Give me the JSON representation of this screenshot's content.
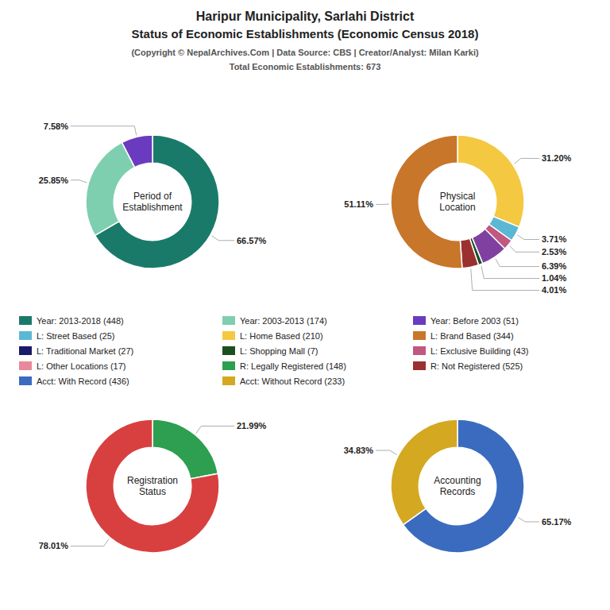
{
  "title": [
    "Haripur Municipality, Sarlahi District",
    "Status of Economic Establishments (Economic Census 2018)"
  ],
  "subtitle": [
    "(Copyright © NepalArchives.Com | Data Source: CBS | Creator/Analyst: Milan Karki)",
    "Total Economic Establishments: 673"
  ],
  "series": [
    {
      "name": "Year: 2013-2018 (448)",
      "color": "#1a7a6a"
    },
    {
      "name": "Year: 2003-2013 (174)",
      "color": "#7ecfb0"
    },
    {
      "name": "Year: Before 2003 (51)",
      "color": "#6b3bbf"
    },
    {
      "name": "L: Street Based (25)",
      "color": "#5bb8d4"
    },
    {
      "name": "L: Home Based (210)",
      "color": "#f5c842"
    },
    {
      "name": "L: Brand Based (344)",
      "color": "#c8762a"
    },
    {
      "name": "L: Traditional Market (27)",
      "color": "#1a1a6a"
    },
    {
      "name": "L: Shopping Mall (7)",
      "color": "#1a5020"
    },
    {
      "name": "L: Exclusive Building (43)",
      "color": "#c05880"
    },
    {
      "name": "L: Other Locations (17)",
      "color": "#e88898"
    },
    {
      "name": "R: Legally Registered (148)",
      "color": "#2e9e50"
    },
    {
      "name": "R: Not Registered (525)",
      "color": "#9b3030"
    },
    {
      "name": "Acct: With Record (436)",
      "color": "#3a6bbf"
    },
    {
      "name": "Acct: Without Record (233)",
      "color": "#d4a820"
    }
  ],
  "chart_data": [
    {
      "type": "pie",
      "title": "Period of\nEstablishment",
      "values": [
        66.57,
        25.85,
        7.58
      ],
      "value_labels": [
        "66.57%",
        "25.85%",
        "7.58%"
      ],
      "colors": [
        "#1a7a6a",
        "#7ecfb0",
        "#6b3bbf"
      ],
      "data_labels": true
    },
    {
      "type": "pie",
      "title": "Physical\nLocation",
      "values": [
        31.2,
        3.71,
        2.53,
        6.39,
        1.04,
        4.01,
        51.11
      ],
      "value_labels": [
        "31.20%",
        "3.71%",
        "2.53%",
        "6.39%",
        "1.04%",
        "4.01%",
        "51.11%"
      ],
      "colors": [
        "#f5c842",
        "#5bb8d4",
        "#c05880",
        "#8040a0",
        "#1a5020",
        "#9b3030",
        "#c8762a"
      ],
      "data_labels": true
    },
    {
      "type": "pie",
      "title": "Registration\nStatus",
      "values": [
        21.99,
        78.01
      ],
      "value_labels": [
        "21.99%",
        "78.01%"
      ],
      "colors": [
        "#2e9e50",
        "#d84040"
      ],
      "data_labels": true
    },
    {
      "type": "pie",
      "title": "Accounting\nRecords",
      "values": [
        65.17,
        34.83
      ],
      "value_labels": [
        "65.17%",
        "34.83%"
      ],
      "colors": [
        "#3a6bbf",
        "#d4a820"
      ],
      "data_labels": true
    }
  ]
}
